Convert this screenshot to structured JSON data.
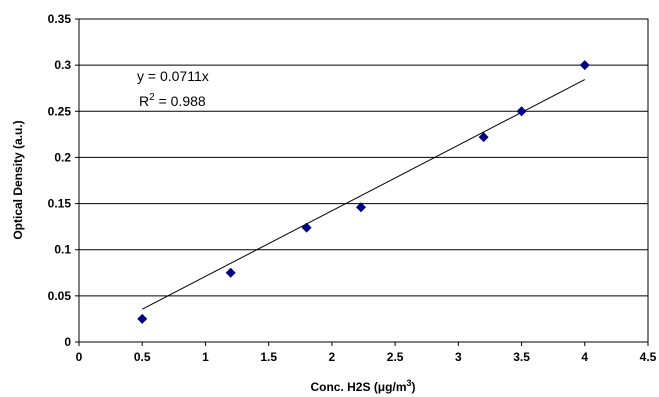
{
  "chart_data": {
    "type": "scatter",
    "xlabel": "Conc. H2S (μg/m",
    "xlabel_superscript": "3",
    "xlabel_suffix": ")",
    "ylabel": "Optical Density (a.u.)",
    "xlim": [
      0,
      4.5
    ],
    "ylim": [
      0,
      0.35
    ],
    "x_ticks": [
      "0",
      "0.5",
      "1",
      "1.5",
      "2",
      "2.5",
      "3",
      "3.5",
      "4",
      "4.5"
    ],
    "y_ticks": [
      "0",
      "0.05",
      "0.1",
      "0.15",
      "0.2",
      "0.25",
      "0.3",
      "0.35"
    ],
    "grid": "horizontal",
    "series": [
      {
        "marker": "diamond",
        "color": "#000080",
        "x": [
          0.5,
          1.2,
          1.8,
          2.23,
          3.2,
          3.5,
          4.0
        ],
        "y": [
          0.025,
          0.075,
          0.124,
          0.146,
          0.222,
          0.25,
          0.3
        ]
      }
    ],
    "trendline": {
      "slope": 0.0711,
      "x_range": [
        0.5,
        4.0
      ],
      "equation": "y = 0.0711x",
      "r2_label": "R",
      "r2_superscript": "2",
      "r2_value": " = 0.988"
    }
  }
}
